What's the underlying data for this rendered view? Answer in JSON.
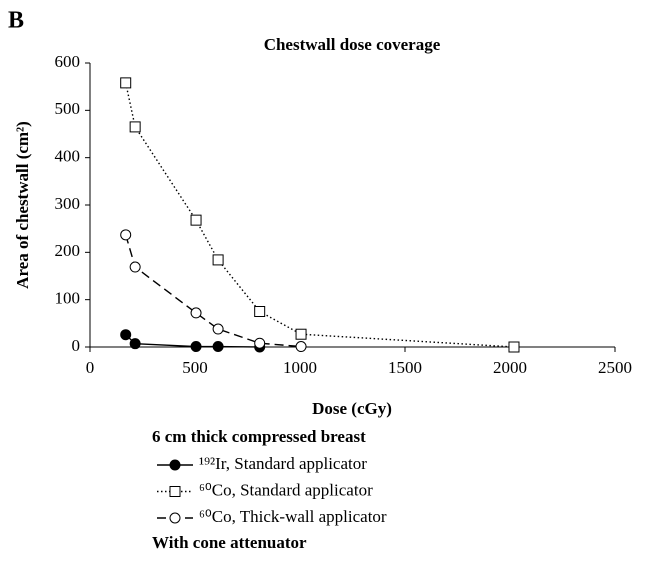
{
  "chart_data": {
    "type": "line",
    "panel_label": "B",
    "title": "Chestwall dose coverage",
    "x_label": "Dose (cGy)",
    "y_label": "Area of chestwall (cm²)",
    "xlim": [
      0,
      2500
    ],
    "xticks": [
      0,
      500,
      1000,
      1500,
      2000,
      2500
    ],
    "ylim": [
      0,
      600
    ],
    "yticks": [
      0,
      100,
      200,
      300,
      400,
      500,
      600
    ],
    "legend_title": "6 cm thick compressed breast",
    "legend_footer": "With cone attenuator",
    "series": [
      {
        "name": "¹⁹²Ir, Standard applicator",
        "color": "#000000",
        "marker": "filled-circle",
        "dash": "solid",
        "x": [
          170,
          215,
          505,
          610,
          808
        ],
        "values": [
          26,
          7,
          1,
          1,
          0
        ]
      },
      {
        "name": "⁶⁰Co, Standard applicator",
        "color": "#000000",
        "marker": "open-square",
        "dash": "dotted",
        "x": [
          170,
          215,
          505,
          610,
          808,
          1005,
          2019
        ],
        "values": [
          558,
          465,
          268,
          184,
          75,
          27,
          0
        ]
      },
      {
        "name": "⁶⁰Co, Thick-wall applicator",
        "color": "#000000",
        "marker": "open-circle",
        "dash": "dashed",
        "x": [
          170,
          215,
          505,
          610,
          808,
          1005
        ],
        "values": [
          237,
          169,
          72,
          38,
          8,
          1
        ]
      }
    ]
  }
}
